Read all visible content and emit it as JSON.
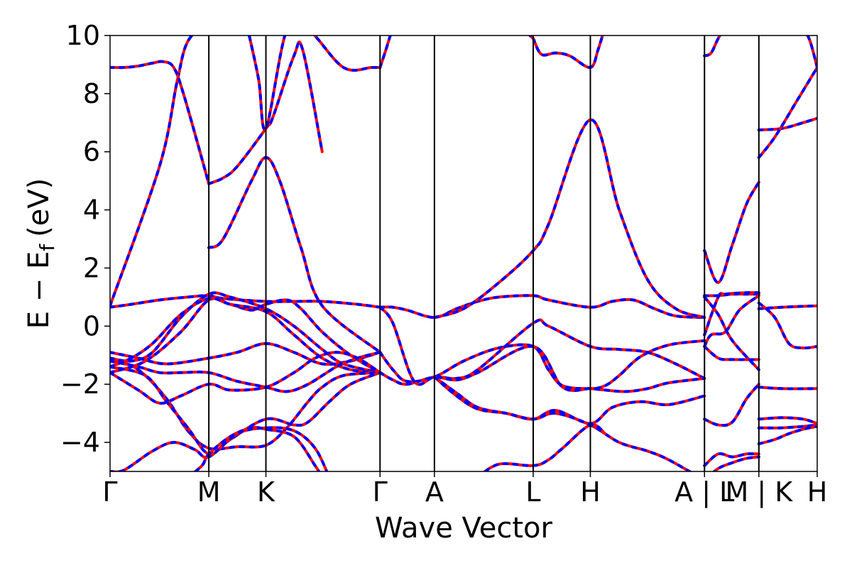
{
  "chart_data": {
    "type": "line",
    "xlabel": "Wave Vector",
    "ylabel": "E − E",
    "ylabel_sub": "f",
    "ylabel_unit": "(eV)",
    "ylim": [
      -5,
      10
    ],
    "yticks": [
      -4,
      -2,
      0,
      2,
      4,
      6,
      8,
      10
    ],
    "ytick_labels": [
      "−4",
      "−2",
      "0",
      "2",
      "4",
      "6",
      "8",
      "10"
    ],
    "xlim": [
      0,
      1
    ],
    "kpoints": [
      {
        "label": "Γ",
        "x": 0.0
      },
      {
        "label": "M",
        "x": 0.1397
      },
      {
        "label": "K",
        "x": 0.2204
      },
      {
        "label": "Γ",
        "x": 0.3818
      },
      {
        "label": "A",
        "x": 0.4587
      },
      {
        "label": "L",
        "x": 0.5984
      },
      {
        "label": "H",
        "x": 0.6792
      },
      {
        "label": "A | L",
        "x": 0.8406
      },
      {
        "label": "M | K",
        "x": 0.9175
      },
      {
        "label": "H",
        "x": 1.0
      }
    ],
    "line_colors": {
      "series_a": "#ff0000",
      "series_b": "#0000ff"
    },
    "bands": [
      {
        "x": [
          0.0,
          0.07,
          0.0947,
          0.11,
          0.14
        ],
        "y": [
          0.7,
          5.5,
          8.4,
          9.8,
          10.5
        ]
      },
      {
        "x": [
          0.0,
          0.02,
          0.04,
          0.06,
          0.075,
          0.09,
          0.105,
          0.1397
        ],
        "y": [
          8.9,
          8.9,
          8.95,
          9.05,
          9.1,
          8.9,
          7.9,
          4.9
        ]
      },
      {
        "x": [
          0.1397,
          0.16,
          0.18,
          0.2204,
          0.2304,
          0.26,
          0.2725,
          0.3
        ],
        "y": [
          4.9,
          5.1,
          5.5,
          6.8,
          7.2,
          9.3,
          9.5,
          6.0
        ]
      },
      {
        "x": [
          0.1397,
          0.16,
          0.2,
          0.2204,
          0.24,
          0.27,
          0.3,
          0.3818
        ],
        "y": [
          2.7,
          3.0,
          5.0,
          5.8,
          5.0,
          2.7,
          0.7,
          -0.9
        ]
      },
      {
        "x": [
          0.194,
          0.21,
          0.2204,
          0.25,
          0.2806,
          0.33,
          0.37,
          0.3818
        ],
        "y": [
          10.3,
          8.5,
          6.8,
          10.2,
          10.2,
          8.9,
          8.9,
          8.9
        ]
      },
      {
        "x": [
          0.3818,
          0.39,
          0.4
        ],
        "y": [
          8.9,
          9.5,
          10.3
        ]
      },
      {
        "x": [
          0.0,
          0.03,
          0.07,
          0.11,
          0.1397,
          0.16,
          0.2204,
          0.26,
          0.3,
          0.35,
          0.3818
        ],
        "y": [
          0.65,
          0.75,
          0.9,
          1.0,
          1.05,
          0.95,
          0.85,
          0.85,
          0.85,
          0.75,
          0.65
        ]
      },
      {
        "x": [
          0.0,
          0.05,
          0.1,
          0.1397,
          0.17,
          0.2,
          0.2204,
          0.25,
          0.27,
          0.3,
          0.34,
          0.3818
        ],
        "y": [
          -1.6,
          -1.2,
          -0.2,
          0.9,
          0.75,
          0.55,
          0.75,
          0.9,
          0.6,
          -0.2,
          -1.0,
          -1.6
        ]
      },
      {
        "x": [
          0.0,
          0.03,
          0.06,
          0.1,
          0.1397,
          0.17,
          0.2204,
          0.26,
          0.3,
          0.33,
          0.3818
        ],
        "y": [
          -1.1,
          -1.2,
          -0.9,
          0.3,
          1.1,
          1.0,
          0.6,
          0.0,
          -0.8,
          -1.3,
          -1.6
        ]
      },
      {
        "x": [
          0.0,
          0.03,
          0.06,
          0.1,
          0.1397,
          0.17,
          0.2204,
          0.26,
          0.3,
          0.34,
          0.3818
        ],
        "y": [
          -1.4,
          -1.1,
          -0.6,
          0.4,
          0.95,
          0.75,
          0.5,
          -0.3,
          -1.1,
          -1.5,
          -1.6
        ]
      },
      {
        "x": [
          0.0,
          0.04,
          0.08,
          0.1397,
          0.18,
          0.2204,
          0.26,
          0.3,
          0.34,
          0.3818
        ],
        "y": [
          -0.9,
          -1.1,
          -1.3,
          -1.1,
          -0.9,
          -0.6,
          -0.9,
          -1.3,
          -1.2,
          -0.9
        ]
      },
      {
        "x": [
          0.0,
          0.04,
          0.07,
          0.1,
          0.1397,
          0.18,
          0.2204,
          0.25,
          0.28,
          0.32,
          0.35,
          0.3818
        ],
        "y": [
          -1.2,
          -1.4,
          -1.6,
          -1.6,
          -1.6,
          -1.9,
          -2.1,
          -2.25,
          -2.0,
          -1.4,
          -1.1,
          -0.9
        ]
      },
      {
        "x": [
          0.0,
          0.04,
          0.07,
          0.1,
          0.1397,
          0.17,
          0.2204,
          0.26,
          0.29,
          0.32,
          0.35,
          0.3818
        ],
        "y": [
          -1.6,
          -2.2,
          -2.65,
          -2.4,
          -2.0,
          -2.2,
          -2.1,
          -1.6,
          -1.1,
          -0.9,
          -1.1,
          -1.6
        ]
      },
      {
        "x": [
          0.0,
          0.04,
          0.08,
          0.11,
          0.1397,
          0.18,
          0.2204,
          0.25,
          0.28,
          0.3,
          0.33,
          0.3818
        ],
        "y": [
          -1.1,
          -1.5,
          -2.5,
          -3.6,
          -4.2,
          -4.15,
          -4.1,
          -3.5,
          -2.6,
          -2.1,
          -1.7,
          -1.6
        ]
      },
      {
        "x": [
          0.0,
          0.05,
          0.08,
          0.11,
          0.1397,
          0.17,
          0.2204,
          0.26,
          0.28,
          0.31,
          0.34,
          0.3818
        ],
        "y": [
          -1.4,
          -1.7,
          -2.6,
          -3.5,
          -4.4,
          -3.9,
          -3.2,
          -3.4,
          -3.3,
          -2.6,
          -2.0,
          -1.6
        ]
      },
      {
        "x": [
          0.0,
          0.02,
          0.06,
          0.09,
          0.12,
          0.1397,
          0.18,
          0.2204,
          0.26,
          0.29,
          0.31
        ],
        "y": [
          -5.0,
          -4.95,
          -4.3,
          -4.0,
          -4.25,
          -4.5,
          -3.7,
          -3.5,
          -3.6,
          -4.2,
          -5.2
        ]
      },
      {
        "x": [
          0.11,
          0.13,
          0.1397,
          0.17,
          0.2,
          0.2204,
          0.26,
          0.29,
          0.3
        ],
        "y": [
          -5.2,
          -4.8,
          -4.4,
          -3.8,
          -3.5,
          -3.55,
          -3.8,
          -4.8,
          -5.2
        ]
      },
      {
        "x": [
          0.3818,
          0.4,
          0.42,
          0.4587,
          0.49,
          0.52,
          0.55,
          0.5984,
          0.62,
          0.6792,
          0.71,
          0.74,
          0.77,
          0.8,
          0.8406
        ],
        "y": [
          0.65,
          0.65,
          0.55,
          0.3,
          0.6,
          0.85,
          1.0,
          1.05,
          0.9,
          0.65,
          0.85,
          0.9,
          0.6,
          0.35,
          0.3
        ]
      },
      {
        "x": [
          0.3818,
          0.4,
          0.42,
          0.4587,
          0.5,
          0.55,
          0.5984,
          0.62,
          0.64,
          0.6792,
          0.7,
          0.72,
          0.75,
          0.79,
          0.8406
        ],
        "y": [
          -0.9,
          -1.5,
          -1.9,
          -1.75,
          -1.2,
          -0.75,
          -0.7,
          -1.5,
          -2.05,
          -2.15,
          -2.05,
          -1.7,
          -1.05,
          -0.65,
          -0.5
        ]
      },
      {
        "x": [
          0.3818,
          0.4,
          0.42,
          0.4587,
          0.49,
          0.52,
          0.5984,
          0.62,
          0.6792,
          0.72,
          0.76,
          0.8,
          0.8406
        ],
        "y": [
          -1.6,
          -1.85,
          -2.0,
          -1.75,
          -1.8,
          -1.5,
          0.1,
          0.0,
          -0.7,
          -0.8,
          -0.9,
          -1.3,
          -1.8
        ]
      },
      {
        "x": [
          0.3818,
          0.4,
          0.43,
          0.4587,
          0.49,
          0.52,
          0.5984,
          0.64,
          0.6792,
          0.7,
          0.73,
          0.76,
          0.79,
          0.8406
        ],
        "y": [
          0.65,
          0.1,
          -1.9,
          -1.75,
          -1.85,
          -1.6,
          -0.7,
          -2.1,
          -2.15,
          -2.2,
          -2.25,
          -2.15,
          -1.95,
          -1.8
        ]
      },
      {
        "x": [
          0.4587,
          0.5,
          0.55,
          0.5984,
          0.62,
          0.6792,
          0.72,
          0.76,
          0.8,
          0.8406
        ],
        "y": [
          0.3,
          0.6,
          1.5,
          2.6,
          3.5,
          7.1,
          4.0,
          1.6,
          0.6,
          0.3
        ]
      },
      {
        "x": [
          0.4587,
          0.49,
          0.52,
          0.56,
          0.5984,
          0.63,
          0.6792,
          0.71,
          0.75,
          0.79,
          0.8406
        ],
        "y": [
          -1.75,
          -2.3,
          -2.8,
          -3.0,
          -3.2,
          -2.9,
          -3.35,
          -2.8,
          -2.6,
          -2.7,
          -2.4
        ]
      },
      {
        "x": [
          0.4587,
          0.49,
          0.52,
          0.56,
          0.5984,
          0.63,
          0.6792,
          0.72,
          0.76,
          0.79,
          0.8406
        ],
        "y": [
          -1.75,
          -2.4,
          -2.85,
          -3.0,
          -3.2,
          -3.0,
          -3.4,
          -4.0,
          -4.3,
          -4.6,
          -5.3
        ]
      },
      {
        "x": [
          0.52,
          0.55,
          0.5984,
          0.62,
          0.64,
          0.6792,
          0.7
        ],
        "y": [
          -5.2,
          -4.75,
          -4.8,
          -4.6,
          -4.2,
          -3.4,
          -3.7
        ]
      },
      {
        "x": [
          0.5984,
          0.61,
          0.63,
          0.65,
          0.6792,
          0.69,
          0.7
        ],
        "y": [
          9.9,
          9.35,
          9.4,
          9.3,
          8.9,
          9.5,
          10.3
        ]
      },
      {
        "x": [
          0.58,
          0.5984
        ],
        "y": [
          10.3,
          9.9
        ]
      },
      {
        "x": [
          0.8406,
          0.85,
          0.86,
          0.87
        ],
        "y": [
          9.3,
          9.4,
          9.9,
          10.3
        ]
      },
      {
        "x": [
          0.8406,
          0.86,
          0.88,
          0.9,
          0.9175
        ],
        "y": [
          2.6,
          1.5,
          2.8,
          4.2,
          4.95
        ]
      },
      {
        "x": [
          0.8406,
          0.86,
          0.88,
          0.9,
          0.9175
        ],
        "y": [
          1.05,
          1.05,
          1.1,
          1.1,
          1.1
        ]
      },
      {
        "x": [
          0.8406,
          0.86,
          0.87,
          0.9,
          0.9175
        ],
        "y": [
          -0.3,
          1.0,
          1.1,
          1.15,
          1.15
        ]
      },
      {
        "x": [
          0.8406,
          0.85,
          0.87,
          0.89,
          0.9175
        ],
        "y": [
          -0.7,
          -0.3,
          -0.2,
          0.55,
          1.05
        ]
      },
      {
        "x": [
          0.8406,
          0.86,
          0.88,
          0.9175
        ],
        "y": [
          1.0,
          0.4,
          -0.5,
          -1.5
        ]
      },
      {
        "x": [
          0.8406,
          0.86,
          0.88,
          0.9,
          0.9175
        ],
        "y": [
          -3.2,
          -3.4,
          -3.3,
          -2.5,
          -2.0
        ]
      },
      {
        "x": [
          0.8406,
          0.86,
          0.88,
          0.9175
        ],
        "y": [
          -0.7,
          -1.1,
          -1.15,
          -1.15
        ]
      },
      {
        "x": [
          0.8406,
          0.86,
          0.88,
          0.9,
          0.9175
        ],
        "y": [
          -4.8,
          -4.4,
          -4.5,
          -4.4,
          -4.4
        ]
      },
      {
        "x": [
          0.8406,
          0.86,
          0.88,
          0.9,
          0.9175
        ],
        "y": [
          -5.3,
          -4.9,
          -4.7,
          -4.55,
          -4.5
        ]
      },
      {
        "x": [
          0.9175,
          0.95,
          0.98,
          1.0
        ],
        "y": [
          6.75,
          6.8,
          7.0,
          7.15
        ]
      },
      {
        "x": [
          0.9175,
          0.94,
          0.97,
          1.0
        ],
        "y": [
          5.8,
          6.5,
          7.7,
          8.9
        ]
      },
      {
        "x": [
          0.98,
          0.99,
          1.0
        ],
        "y": [
          10.3,
          9.8,
          8.9
        ]
      },
      {
        "x": [
          0.9175,
          0.95,
          1.0
        ],
        "y": [
          0.6,
          0.65,
          0.7
        ]
      },
      {
        "x": [
          0.9175,
          0.94,
          0.96,
          0.98,
          1.0
        ],
        "y": [
          0.8,
          0.3,
          -0.6,
          -0.75,
          -0.7
        ]
      },
      {
        "x": [
          0.9175,
          0.95,
          1.0
        ],
        "y": [
          -2.1,
          -2.15,
          -2.15
        ]
      },
      {
        "x": [
          0.9175,
          0.95,
          0.98,
          1.0
        ],
        "y": [
          -3.2,
          -3.15,
          -3.2,
          -3.35
        ]
      },
      {
        "x": [
          0.9175,
          0.95,
          0.98,
          1.0
        ],
        "y": [
          -3.5,
          -3.5,
          -3.45,
          -3.4
        ]
      },
      {
        "x": [
          0.9175,
          0.94,
          0.96,
          0.98,
          1.0
        ],
        "y": [
          -4.05,
          -3.9,
          -3.7,
          -3.55,
          -3.45
        ]
      }
    ]
  }
}
